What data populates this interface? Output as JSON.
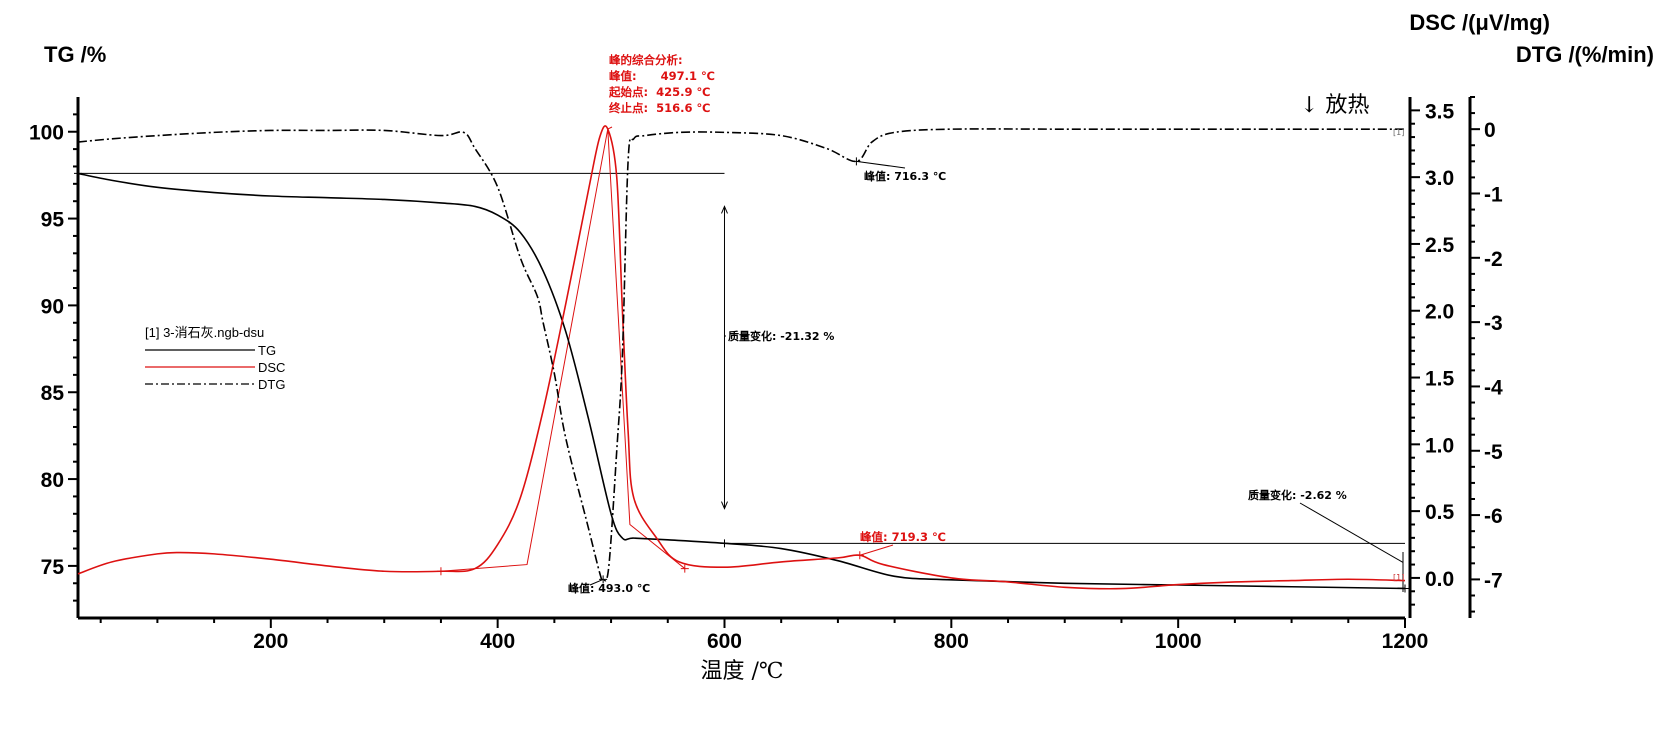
{
  "chart_data": {
    "type": "line",
    "x_axis": {
      "label": "温度 /℃",
      "ticks": [
        "200",
        "400",
        "600",
        "800",
        "1000",
        "1200"
      ],
      "range": [
        30,
        1200
      ]
    },
    "y_left": {
      "label": "TG /%",
      "ticks": [
        "75",
        "80",
        "85",
        "90",
        "95",
        "100"
      ],
      "range": [
        72,
        102
      ]
    },
    "y_dsc": {
      "label": "DSC /(μV/mg)",
      "ticks": [
        "0.0",
        "0.5",
        "1.0",
        "1.5",
        "2.0",
        "2.5",
        "3.0",
        "3.5"
      ],
      "range": [
        -0.3,
        3.6
      ]
    },
    "y_dtg": {
      "label": "DTG /(%/min)",
      "ticks": [
        "0",
        "-1",
        "-2",
        "-3",
        "-4",
        "-5",
        "-6",
        "-7"
      ],
      "range": [
        -7.6,
        0.5
      ]
    },
    "exo_label": "↓ 放热",
    "legend": {
      "title": "[1] 3-消石灰.ngb-dsu",
      "entries": [
        "TG",
        "DSC",
        "DTG"
      ]
    },
    "series": [
      {
        "name": "TG",
        "axis": "tg",
        "color": "#000000",
        "style": "solid",
        "x": [
          30,
          60,
          100,
          150,
          200,
          250,
          300,
          350,
          380,
          400,
          420,
          440,
          460,
          480,
          500,
          510,
          520,
          550,
          600,
          650,
          700,
          750,
          800,
          900,
          1000,
          1100,
          1200
        ],
        "y": [
          97.6,
          97.2,
          96.8,
          96.5,
          96.3,
          96.2,
          96.1,
          95.9,
          95.7,
          95.2,
          94.2,
          92.0,
          88.5,
          83.5,
          78.0,
          76.6,
          76.6,
          76.5,
          76.3,
          76.0,
          75.3,
          74.4,
          74.2,
          74.0,
          73.9,
          73.8,
          73.7
        ]
      },
      {
        "name": "DSC",
        "axis": "dsc",
        "color": "#dd1111",
        "style": "solid",
        "x": [
          30,
          60,
          100,
          120,
          150,
          200,
          250,
          300,
          350,
          380,
          400,
          420,
          440,
          460,
          480,
          490,
          497.1,
          505,
          510,
          515,
          520,
          540,
          560,
          600,
          650,
          700,
          719.3,
          740,
          800,
          850,
          900,
          950,
          1000,
          1050,
          1100,
          1150,
          1200
        ],
        "y": [
          0.03,
          0.12,
          0.18,
          0.19,
          0.18,
          0.14,
          0.09,
          0.05,
          0.05,
          0.07,
          0.25,
          0.6,
          1.25,
          2.05,
          2.9,
          3.3,
          3.36,
          3.0,
          2.0,
          1.1,
          0.6,
          0.3,
          0.12,
          0.08,
          0.12,
          0.15,
          0.17,
          0.1,
          0.0,
          -0.03,
          -0.07,
          -0.08,
          -0.05,
          -0.03,
          -0.02,
          -0.01,
          -0.02
        ]
      },
      {
        "name": "DTG",
        "axis": "dtg",
        "color": "#000000",
        "style": "dashdot",
        "x": [
          30,
          60,
          100,
          150,
          200,
          250,
          300,
          350,
          370,
          380,
          400,
          420,
          435,
          440,
          450,
          460,
          480,
          490,
          493,
          498,
          505,
          510,
          515,
          520,
          530,
          560,
          600,
          650,
          690,
          716.3,
          730,
          750,
          800,
          900,
          1000,
          1100,
          1200
        ],
        "y": [
          -0.2,
          -0.15,
          -0.1,
          -0.05,
          -0.02,
          -0.02,
          -0.02,
          -0.1,
          -0.05,
          -0.3,
          -0.9,
          -2.0,
          -2.6,
          -3.0,
          -3.8,
          -4.8,
          -6.2,
          -6.9,
          -7.0,
          -6.8,
          -5.0,
          -3.5,
          -0.5,
          -0.15,
          -0.1,
          -0.05,
          -0.05,
          -0.1,
          -0.3,
          -0.5,
          -0.2,
          -0.05,
          0.0,
          0.0,
          0.0,
          0.0,
          0.0
        ]
      }
    ],
    "annotations": {
      "dsc_peak_header": "峰的综合分析:",
      "dsc_peak_line1": "峰值:      497.1 ℃",
      "dsc_peak_line2": "起始点:  425.9 ℃",
      "dsc_peak_line3": "终止点:  516.6 ℃",
      "dtg_peak1": "峰值: 716.3 ℃",
      "dtg_peak2": "峰值: 493.0 ℃",
      "dsc_peak2": "峰值: 719.3 ℃",
      "mass_change1": "质量变化: -21.32 %",
      "mass_change2": "质量变化: -2.62 %",
      "curve_tag": "[1]"
    }
  }
}
